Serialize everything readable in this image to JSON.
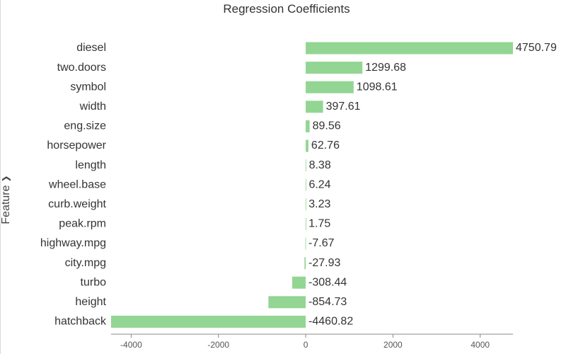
{
  "chart_data": {
    "type": "bar",
    "orientation": "horizontal",
    "title": "Regression Coefficients",
    "ylabel": "Feature",
    "xlabel": "",
    "categories": [
      "diesel",
      "two.doors",
      "symbol",
      "width",
      "eng.size",
      "horsepower",
      "length",
      "wheel.base",
      "curb.weight",
      "peak.rpm",
      "highway.mpg",
      "city.mpg",
      "turbo",
      "height",
      "hatchback"
    ],
    "values": [
      4750.79,
      1299.68,
      1098.61,
      397.61,
      89.56,
      62.76,
      8.38,
      6.24,
      3.23,
      1.75,
      -7.67,
      -27.93,
      -308.44,
      -854.73,
      -4460.82
    ],
    "data_labels": [
      "4750.79",
      "1299.68",
      "1098.61",
      "397.61",
      "89.56",
      "62.76",
      "8.38",
      "6.24",
      "3.23",
      "1.75",
      "-7.67",
      "-27.93",
      "-308.44",
      "-854.73",
      "-4460.82"
    ],
    "xlim": [
      -4460.82,
      4750.79
    ],
    "xticks": [
      -4000,
      -2000,
      0,
      2000,
      4000
    ],
    "xtick_labels": [
      "-4000",
      "-2000",
      "0",
      "2000",
      "4000"
    ],
    "grid": false,
    "legend": "none",
    "bar_color": "#93d593",
    "axis_color": "#888888",
    "text_color": "#333333"
  },
  "controls": {
    "y_axis_dropdown_icon": "chevron-down-icon"
  }
}
